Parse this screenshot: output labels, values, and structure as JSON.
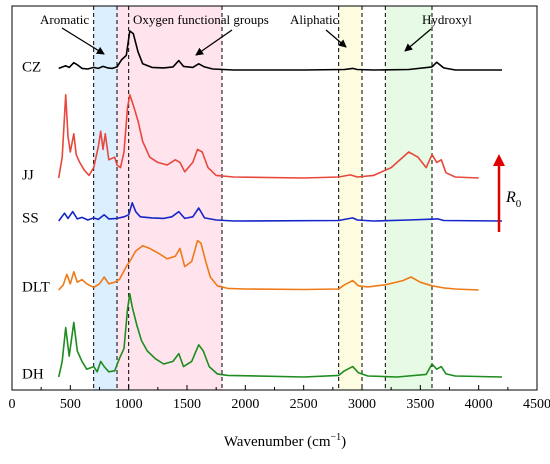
{
  "chart_data": {
    "type": "line",
    "title": "",
    "xlabel": "Wavenumber (cm−1)",
    "xlabel_parts": {
      "text": "Wavenumber (cm",
      "sup": "−1",
      "close": ")"
    },
    "ylabel": "",
    "xlim": [
      0,
      4500
    ],
    "xticks": [
      0,
      500,
      1000,
      1500,
      2000,
      2500,
      3000,
      3500,
      4000,
      4500
    ],
    "xtick_labels": [
      "0",
      "500",
      "1000",
      "1500",
      "2000",
      "2500",
      "3000",
      "3500",
      "4000",
      "4500"
    ],
    "grid": false,
    "bands": [
      {
        "name": "Aromatic",
        "range": [
          700,
          900
        ],
        "color": "#dcefff"
      },
      {
        "name": "Oxygen functional groups",
        "range": [
          900,
          1800
        ],
        "color": "#ffe4ee"
      },
      {
        "name": "Aliphatic",
        "range": [
          2800,
          3000
        ],
        "color": "#fdfbe0"
      },
      {
        "name": "Hydroxyl",
        "range": [
          3200,
          3600
        ],
        "color": "#e6fae6"
      }
    ],
    "dashed_lines": [
      700,
      900,
      1000,
      1800,
      2800,
      3000,
      3200,
      3600
    ],
    "annotations": [
      "Aromatic",
      "Oxygen functional groups",
      "Aliphatic",
      "Hydroxyl"
    ],
    "arrow_label": {
      "main": "R",
      "sub": "0"
    },
    "series": [
      {
        "name": "CZ",
        "color": "#000000",
        "x_end": 4200,
        "points": [
          [
            400,
            0.03
          ],
          [
            460,
            0.08
          ],
          [
            490,
            0.05
          ],
          [
            530,
            0.14
          ],
          [
            560,
            0.1
          ],
          [
            600,
            0.03
          ],
          [
            650,
            0.02
          ],
          [
            700,
            0.05
          ],
          [
            740,
            0.03
          ],
          [
            780,
            0.07
          ],
          [
            820,
            0.04
          ],
          [
            860,
            0.03
          ],
          [
            900,
            0.06
          ],
          [
            940,
            0.2
          ],
          [
            980,
            0.28
          ],
          [
            1010,
            0.75
          ],
          [
            1040,
            0.7
          ],
          [
            1080,
            0.35
          ],
          [
            1120,
            0.12
          ],
          [
            1200,
            0.05
          ],
          [
            1300,
            0.04
          ],
          [
            1380,
            0.06
          ],
          [
            1430,
            0.18
          ],
          [
            1470,
            0.07
          ],
          [
            1550,
            0.05
          ],
          [
            1600,
            0.12
          ],
          [
            1650,
            0.06
          ],
          [
            1720,
            0.02
          ],
          [
            1900,
            0.0
          ],
          [
            2500,
            0.0
          ],
          [
            2850,
            0.01
          ],
          [
            2920,
            0.03
          ],
          [
            2960,
            0.01
          ],
          [
            3100,
            0.0
          ],
          [
            3400,
            0.01
          ],
          [
            3600,
            0.06
          ],
          [
            3640,
            0.15
          ],
          [
            3700,
            0.04
          ],
          [
            3800,
            0.0
          ],
          [
            4200,
            0.0
          ]
        ]
      },
      {
        "name": "JJ",
        "color": "#e8483c",
        "x_end": 4000,
        "points": [
          [
            400,
            0.0
          ],
          [
            430,
            0.4
          ],
          [
            460,
            1.6
          ],
          [
            480,
            0.8
          ],
          [
            500,
            0.5
          ],
          [
            530,
            0.85
          ],
          [
            550,
            0.45
          ],
          [
            580,
            0.3
          ],
          [
            620,
            0.15
          ],
          [
            660,
            0.05
          ],
          [
            700,
            0.2
          ],
          [
            740,
            0.6
          ],
          [
            760,
            0.9
          ],
          [
            780,
            0.55
          ],
          [
            800,
            0.85
          ],
          [
            830,
            0.35
          ],
          [
            880,
            0.4
          ],
          [
            900,
            0.25
          ],
          [
            930,
            0.2
          ],
          [
            960,
            0.5
          ],
          [
            990,
            1.35
          ],
          [
            1010,
            1.6
          ],
          [
            1040,
            1.4
          ],
          [
            1080,
            1.1
          ],
          [
            1120,
            0.7
          ],
          [
            1180,
            0.4
          ],
          [
            1250,
            0.3
          ],
          [
            1330,
            0.25
          ],
          [
            1400,
            0.35
          ],
          [
            1440,
            0.3
          ],
          [
            1480,
            0.12
          ],
          [
            1550,
            0.3
          ],
          [
            1590,
            0.55
          ],
          [
            1630,
            0.5
          ],
          [
            1680,
            0.2
          ],
          [
            1750,
            0.05
          ],
          [
            1900,
            0.02
          ],
          [
            2500,
            0.0
          ],
          [
            2800,
            0.02
          ],
          [
            2900,
            0.06
          ],
          [
            2960,
            0.02
          ],
          [
            3100,
            0.05
          ],
          [
            3250,
            0.2
          ],
          [
            3400,
            0.5
          ],
          [
            3480,
            0.4
          ],
          [
            3550,
            0.2
          ],
          [
            3600,
            0.45
          ],
          [
            3640,
            0.3
          ],
          [
            3680,
            0.35
          ],
          [
            3720,
            0.1
          ],
          [
            3800,
            0.02
          ],
          [
            4000,
            0.0
          ]
        ]
      },
      {
        "name": "SS",
        "color": "#1525c8",
        "x_end": 4200,
        "points": [
          [
            400,
            0.0
          ],
          [
            450,
            0.15
          ],
          [
            480,
            0.05
          ],
          [
            520,
            0.18
          ],
          [
            560,
            0.04
          ],
          [
            600,
            0.07
          ],
          [
            650,
            0.02
          ],
          [
            700,
            0.06
          ],
          [
            740,
            0.03
          ],
          [
            790,
            0.12
          ],
          [
            830,
            0.04
          ],
          [
            900,
            0.05
          ],
          [
            960,
            0.08
          ],
          [
            1000,
            0.12
          ],
          [
            1030,
            0.35
          ],
          [
            1060,
            0.18
          ],
          [
            1100,
            0.08
          ],
          [
            1200,
            0.06
          ],
          [
            1300,
            0.05
          ],
          [
            1370,
            0.08
          ],
          [
            1430,
            0.18
          ],
          [
            1480,
            0.05
          ],
          [
            1550,
            0.08
          ],
          [
            1600,
            0.25
          ],
          [
            1650,
            0.06
          ],
          [
            1750,
            0.02
          ],
          [
            1900,
            0.0
          ],
          [
            2800,
            0.01
          ],
          [
            2920,
            0.06
          ],
          [
            2960,
            0.02
          ],
          [
            3100,
            0.0
          ],
          [
            3400,
            0.02
          ],
          [
            3650,
            0.04
          ],
          [
            3700,
            0.01
          ],
          [
            4200,
            0.0
          ]
        ]
      },
      {
        "name": "DLT",
        "color": "#ef7a17",
        "x_end": 4000,
        "points": [
          [
            400,
            0.0
          ],
          [
            440,
            0.1
          ],
          [
            470,
            0.3
          ],
          [
            500,
            0.12
          ],
          [
            530,
            0.35
          ],
          [
            560,
            0.15
          ],
          [
            600,
            0.2
          ],
          [
            640,
            0.12
          ],
          [
            700,
            0.05
          ],
          [
            750,
            0.12
          ],
          [
            790,
            0.25
          ],
          [
            830,
            0.12
          ],
          [
            880,
            0.15
          ],
          [
            920,
            0.2
          ],
          [
            980,
            0.45
          ],
          [
            1010,
            0.55
          ],
          [
            1060,
            0.75
          ],
          [
            1120,
            0.85
          ],
          [
            1180,
            0.8
          ],
          [
            1260,
            0.7
          ],
          [
            1330,
            0.6
          ],
          [
            1400,
            0.65
          ],
          [
            1440,
            0.8
          ],
          [
            1480,
            0.45
          ],
          [
            1540,
            0.55
          ],
          [
            1590,
            0.95
          ],
          [
            1620,
            0.9
          ],
          [
            1660,
            0.55
          ],
          [
            1700,
            0.25
          ],
          [
            1760,
            0.08
          ],
          [
            1850,
            0.03
          ],
          [
            2000,
            0.02
          ],
          [
            2500,
            0.01
          ],
          [
            2800,
            0.02
          ],
          [
            2850,
            0.1
          ],
          [
            2920,
            0.18
          ],
          [
            2970,
            0.08
          ],
          [
            3050,
            0.06
          ],
          [
            3200,
            0.1
          ],
          [
            3350,
            0.18
          ],
          [
            3420,
            0.25
          ],
          [
            3500,
            0.15
          ],
          [
            3600,
            0.08
          ],
          [
            3700,
            0.04
          ],
          [
            3800,
            0.02
          ],
          [
            4000,
            0.0
          ]
        ]
      },
      {
        "name": "DH",
        "color": "#1e8c1e",
        "x_end": 4200,
        "points": [
          [
            400,
            0.0
          ],
          [
            430,
            0.3
          ],
          [
            460,
            0.95
          ],
          [
            490,
            0.4
          ],
          [
            530,
            1.05
          ],
          [
            560,
            0.5
          ],
          [
            600,
            0.3
          ],
          [
            640,
            0.15
          ],
          [
            700,
            0.2
          ],
          [
            730,
            0.1
          ],
          [
            760,
            0.3
          ],
          [
            790,
            0.2
          ],
          [
            830,
            0.1
          ],
          [
            880,
            0.12
          ],
          [
            920,
            0.35
          ],
          [
            960,
            0.55
          ],
          [
            990,
            1.3
          ],
          [
            1010,
            1.6
          ],
          [
            1030,
            1.35
          ],
          [
            1070,
            1.0
          ],
          [
            1110,
            0.7
          ],
          [
            1160,
            0.5
          ],
          [
            1230,
            0.35
          ],
          [
            1300,
            0.25
          ],
          [
            1380,
            0.3
          ],
          [
            1430,
            0.45
          ],
          [
            1470,
            0.2
          ],
          [
            1540,
            0.3
          ],
          [
            1600,
            0.62
          ],
          [
            1640,
            0.5
          ],
          [
            1690,
            0.2
          ],
          [
            1760,
            0.06
          ],
          [
            1850,
            0.03
          ],
          [
            2500,
            0.0
          ],
          [
            2800,
            0.03
          ],
          [
            2850,
            0.12
          ],
          [
            2920,
            0.2
          ],
          [
            2970,
            0.08
          ],
          [
            3050,
            0.02
          ],
          [
            3300,
            0.0
          ],
          [
            3550,
            0.05
          ],
          [
            3600,
            0.25
          ],
          [
            3640,
            0.15
          ],
          [
            3680,
            0.2
          ],
          [
            3720,
            0.06
          ],
          [
            3800,
            0.02
          ],
          [
            4200,
            0.0
          ]
        ]
      }
    ]
  }
}
